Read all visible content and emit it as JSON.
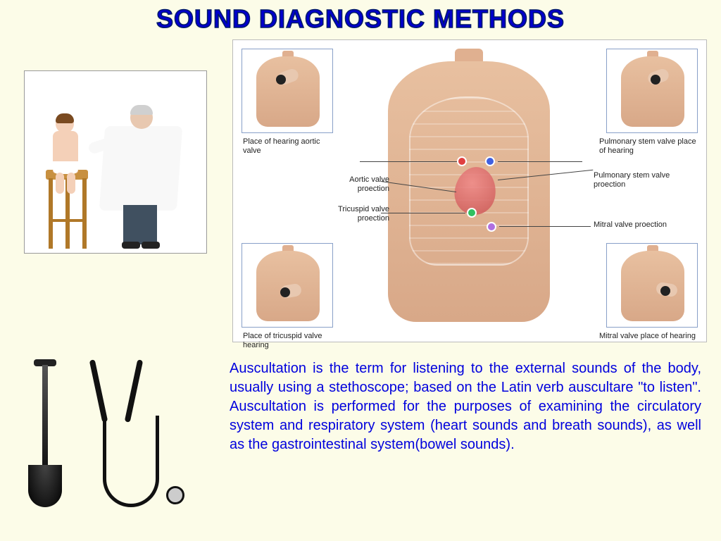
{
  "title": "SOUND DIAGNOSTIC METHODS",
  "diagram": {
    "captions": {
      "top_left": "Place of hearing aortic valve",
      "bottom_left": "Place of tricuspid valve hearing",
      "top_right": "Pulmonary stem valve place of hearing",
      "bottom_right": "Mitral valve place of hearing"
    },
    "labels": {
      "aortic_proj": "Aortic valve proection",
      "tricuspid_proj": "Tricuspid valve proection",
      "pulmonary_proj": "Pulmonary stem valve proection",
      "mitral_proj": "Mitral valve proection"
    },
    "dot_colors": {
      "aortic": "#e04040",
      "pulmonary": "#4060e0",
      "tricuspid": "#30c060",
      "mitral": "#b070e0"
    }
  },
  "description": "Auscultation is the term for listening to the external sounds of the body, usually using a stethoscope; based on the Latin verb auscultare \"to listen\". Auscultation is performed for the purposes of examining the circulatory system and respiratory system (heart sounds and breath sounds), as well as the gastrointestinal system(bowel sounds).",
  "colors": {
    "page_bg": "#fcfce8",
    "title_color": "#0000cc",
    "text_color": "#0000dd",
    "border_color": "#88a0c8"
  },
  "typography": {
    "title_fontsize": 36,
    "body_fontsize": 20,
    "caption_fontsize": 11
  }
}
